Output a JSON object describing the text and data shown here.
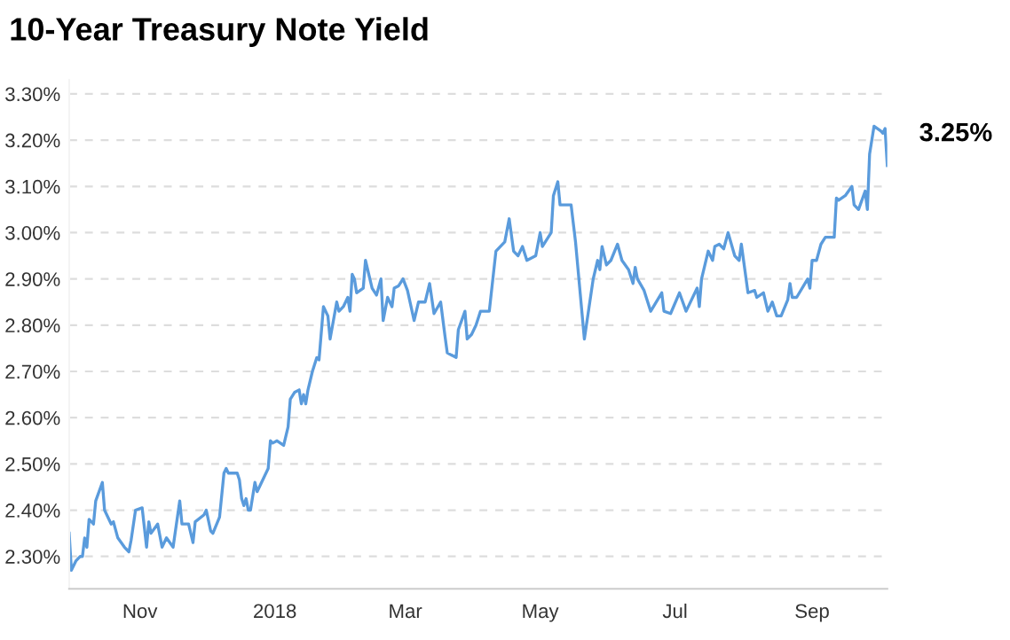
{
  "chart_data": {
    "type": "line",
    "title": "10-Year Treasury Note Yield",
    "x": [
      "2017-09-30",
      "2017-10-01",
      "2017-10-03",
      "2017-10-05",
      "2017-10-06",
      "2017-10-07",
      "2017-10-08",
      "2017-10-09",
      "2017-10-11",
      "2017-10-12",
      "2017-10-15",
      "2017-10-16",
      "2017-10-19",
      "2017-10-20",
      "2017-10-22",
      "2017-10-25",
      "2017-10-27",
      "2017-10-28",
      "2017-10-30",
      "2017-11-02",
      "2017-11-04",
      "2017-11-05",
      "2017-11-06",
      "2017-11-09",
      "2017-11-11",
      "2017-11-13",
      "2017-11-16",
      "2017-11-19",
      "2017-11-20",
      "2017-11-23",
      "2017-11-25",
      "2017-11-26",
      "2017-11-30",
      "2017-12-01",
      "2017-12-03",
      "2017-12-04",
      "2017-12-07",
      "2017-12-09",
      "2017-12-10",
      "2017-12-11",
      "2017-12-15",
      "2017-12-16",
      "2017-12-17",
      "2017-12-18",
      "2017-12-19",
      "2017-12-20",
      "2017-12-21",
      "2017-12-23",
      "2017-12-24",
      "2017-12-27",
      "2017-12-28",
      "2017-12-29",
      "2017-12-30",
      "2017-12-31",
      "2018-01-02",
      "2018-01-05",
      "2018-01-07",
      "2018-01-08",
      "2018-01-10",
      "2018-01-12",
      "2018-01-13",
      "2018-01-14",
      "2018-01-15",
      "2018-01-16",
      "2018-01-18",
      "2018-01-20",
      "2018-01-21",
      "2018-01-23",
      "2018-01-25",
      "2018-01-26",
      "2018-01-29",
      "2018-01-30",
      "2018-02-01",
      "2018-02-03",
      "2018-02-04",
      "2018-02-05",
      "2018-02-06",
      "2018-02-07",
      "2018-02-10",
      "2018-02-11",
      "2018-02-14",
      "2018-02-16",
      "2018-02-18",
      "2018-02-19",
      "2018-02-21",
      "2018-02-23",
      "2018-02-24",
      "2018-02-26",
      "2018-02-28",
      "2018-03-02",
      "2018-03-05",
      "2018-03-07",
      "2018-03-10",
      "2018-03-12",
      "2018-03-14",
      "2018-03-17",
      "2018-03-19",
      "2018-03-20",
      "2018-03-24",
      "2018-03-25",
      "2018-03-28",
      "2018-03-29",
      "2018-03-31",
      "2018-04-02",
      "2018-04-04",
      "2018-04-08",
      "2018-04-11",
      "2018-04-15",
      "2018-04-17",
      "2018-04-19",
      "2018-04-21",
      "2018-04-23",
      "2018-04-25",
      "2018-04-29",
      "2018-05-01",
      "2018-05-02",
      "2018-05-06",
      "2018-05-07",
      "2018-05-09",
      "2018-05-10",
      "2018-05-15",
      "2018-05-17",
      "2018-05-21",
      "2018-05-23",
      "2018-05-25",
      "2018-05-27",
      "2018-05-28",
      "2018-05-29",
      "2018-05-31",
      "2018-06-02",
      "2018-06-05",
      "2018-06-07",
      "2018-06-10",
      "2018-06-12",
      "2018-06-13",
      "2018-06-14",
      "2018-06-17",
      "2018-06-20",
      "2018-06-25",
      "2018-06-26",
      "2018-06-29",
      "2018-07-03",
      "2018-07-06",
      "2018-07-11",
      "2018-07-12",
      "2018-07-13",
      "2018-07-16",
      "2018-07-18",
      "2018-07-19",
      "2018-07-21",
      "2018-07-23",
      "2018-07-25",
      "2018-07-28",
      "2018-07-30",
      "2018-07-31",
      "2018-08-03",
      "2018-08-06",
      "2018-08-07",
      "2018-08-10",
      "2018-08-12",
      "2018-08-14",
      "2018-08-16",
      "2018-08-18",
      "2018-08-21",
      "2018-08-22",
      "2018-08-23",
      "2018-08-25",
      "2018-08-30",
      "2018-08-31",
      "2018-09-01",
      "2018-09-03",
      "2018-09-05",
      "2018-09-07",
      "2018-09-11",
      "2018-09-12",
      "2018-09-13",
      "2018-09-16",
      "2018-09-19",
      "2018-09-20",
      "2018-09-22",
      "2018-09-25",
      "2018-09-26",
      "2018-09-27",
      "2018-09-29",
      "2018-10-02",
      "2018-10-03",
      "2018-10-04",
      "2018-10-05"
    ],
    "series": [
      {
        "color": "#5a9bdc",
        "values": [
          2.35,
          2.27,
          2.29,
          2.3,
          2.3,
          2.34,
          2.32,
          2.38,
          2.37,
          2.42,
          2.46,
          2.4,
          2.37,
          2.375,
          2.34,
          2.32,
          2.31,
          2.335,
          2.4,
          2.405,
          2.32,
          2.375,
          2.35,
          2.37,
          2.32,
          2.34,
          2.32,
          2.42,
          2.37,
          2.37,
          2.33,
          2.375,
          2.39,
          2.4,
          2.355,
          2.35,
          2.385,
          2.48,
          2.49,
          2.48,
          2.48,
          2.465,
          2.425,
          2.41,
          2.425,
          2.4,
          2.4,
          2.46,
          2.44,
          2.47,
          2.48,
          2.49,
          2.55,
          2.545,
          2.55,
          2.54,
          2.58,
          2.64,
          2.655,
          2.66,
          2.63,
          2.65,
          2.63,
          2.66,
          2.7,
          2.73,
          2.725,
          2.84,
          2.82,
          2.77,
          2.85,
          2.83,
          2.84,
          2.86,
          2.83,
          2.91,
          2.9,
          2.87,
          2.88,
          2.94,
          2.88,
          2.865,
          2.9,
          2.81,
          2.86,
          2.84,
          2.88,
          2.885,
          2.9,
          2.875,
          2.81,
          2.85,
          2.85,
          2.89,
          2.825,
          2.85,
          2.775,
          2.74,
          2.73,
          2.79,
          2.83,
          2.77,
          2.78,
          2.8,
          2.83,
          2.83,
          2.96,
          2.98,
          3.03,
          2.96,
          2.95,
          2.97,
          2.94,
          2.95,
          3.0,
          2.97,
          3.0,
          3.08,
          3.11,
          3.06,
          3.06,
          2.98,
          2.77,
          2.835,
          2.9,
          2.94,
          2.92,
          2.97,
          2.93,
          2.94,
          2.975,
          2.94,
          2.92,
          2.89,
          2.925,
          2.9,
          2.875,
          2.83,
          2.87,
          2.83,
          2.825,
          2.87,
          2.83,
          2.88,
          2.84,
          2.9,
          2.96,
          2.94,
          2.97,
          2.975,
          2.965,
          3.0,
          2.95,
          2.94,
          2.975,
          2.87,
          2.875,
          2.86,
          2.87,
          2.83,
          2.85,
          2.82,
          2.82,
          2.855,
          2.89,
          2.86,
          2.86,
          2.9,
          2.88,
          2.94,
          2.94,
          2.975,
          2.99,
          2.99,
          3.075,
          3.07,
          3.08,
          3.1,
          3.06,
          3.05,
          3.09,
          3.05,
          3.17,
          3.23,
          3.22,
          3.215,
          3.225,
          3.145
        ]
      }
    ],
    "xlim": [
      "2017-09-30",
      "2018-10-05"
    ],
    "xticks": [
      {
        "value": "2017-11-01",
        "label": "Nov"
      },
      {
        "value": "2018-01-01",
        "label": "2018"
      },
      {
        "value": "2018-03-01",
        "label": "Mar"
      },
      {
        "value": "2018-05-01",
        "label": "May"
      },
      {
        "value": "2018-07-01",
        "label": "Jul"
      },
      {
        "value": "2018-09-01",
        "label": "Sep"
      }
    ],
    "ylim": [
      2.23,
      3.33
    ],
    "yticks": [
      {
        "value": 2.3,
        "label": "2.30%"
      },
      {
        "value": 2.4,
        "label": "2.40%"
      },
      {
        "value": 2.5,
        "label": "2.50%"
      },
      {
        "value": 2.6,
        "label": "2.60%"
      },
      {
        "value": 2.7,
        "label": "2.70%"
      },
      {
        "value": 2.8,
        "label": "2.80%"
      },
      {
        "value": 2.9,
        "label": "2.90%"
      },
      {
        "value": 3.0,
        "label": "3.00%"
      },
      {
        "value": 3.1,
        "label": "3.10%"
      },
      {
        "value": 3.2,
        "label": "3.20%"
      },
      {
        "value": 3.3,
        "label": "3.30%"
      }
    ],
    "grid": "y",
    "annotations": [
      "3.25%"
    ]
  }
}
